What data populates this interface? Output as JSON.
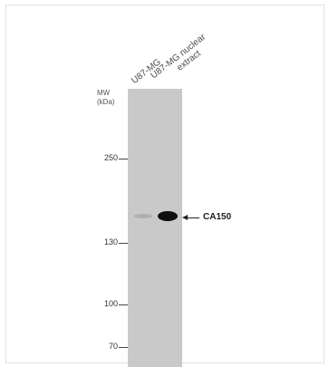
{
  "lanes": [
    {
      "label_line1": "U87-MG",
      "label_line2": ""
    },
    {
      "label_line1": "U87-MG nuclear",
      "label_line2": "extract"
    }
  ],
  "mw_title_line1": "MW",
  "mw_title_line2": "(kDa)",
  "markers": [
    "250",
    "130",
    "100",
    "70"
  ],
  "target_label": "CA150"
}
